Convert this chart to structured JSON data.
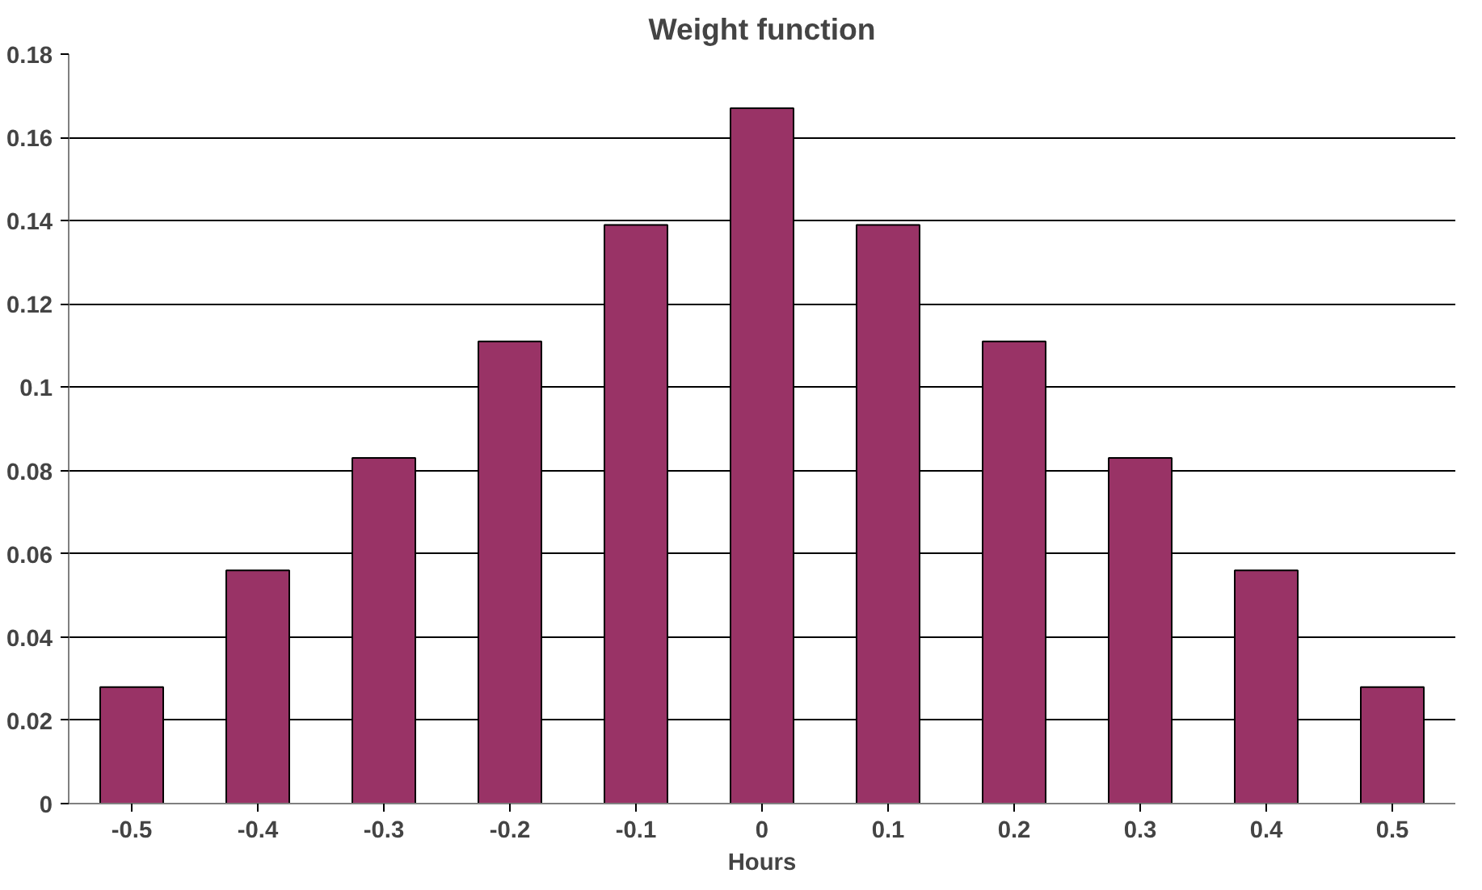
{
  "chart_data": {
    "type": "bar",
    "title": "Weight function",
    "xlabel": "Hours",
    "categories": [
      "-0.5",
      "-0.4",
      "-0.3",
      "-0.2",
      "-0.1",
      "0",
      "0.1",
      "0.2",
      "0.3",
      "0.4",
      "0.5"
    ],
    "values": [
      0.028,
      0.056,
      0.083,
      0.111,
      0.139,
      0.167,
      0.139,
      0.111,
      0.083,
      0.056,
      0.028
    ],
    "color": "#993366",
    "ylim": [
      0,
      0.18
    ],
    "yticks": [
      0,
      0.02,
      0.04,
      0.06,
      0.08,
      0.1,
      0.12,
      0.14,
      0.16,
      0.18
    ],
    "grid": "y"
  }
}
